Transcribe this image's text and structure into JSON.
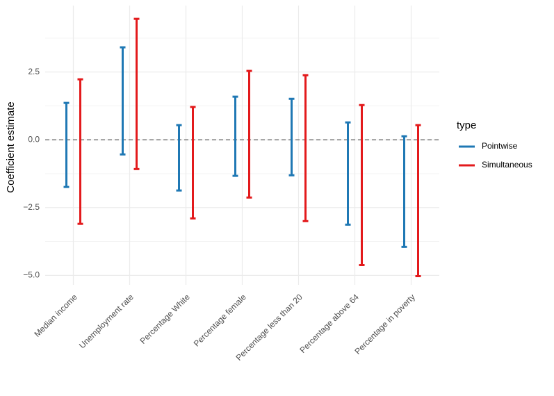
{
  "chart_data": {
    "type": "errorbar",
    "y_label": "Coefficient estimate",
    "categories": [
      "Median income",
      "Unemployment rate",
      "Percentage White",
      "Percentage female",
      "Percentage less than 20",
      "Percentage above 64",
      "Percentage in poverty"
    ],
    "series": [
      {
        "name": "Pointwise",
        "color": "#1f78b4",
        "lower": [
          -1.74,
          -0.54,
          -1.87,
          -1.33,
          -1.31,
          -3.13,
          -3.95
        ],
        "upper": [
          1.36,
          3.41,
          0.54,
          1.59,
          1.51,
          0.64,
          0.13
        ]
      },
      {
        "name": "Simultaneous",
        "color": "#e31a1c",
        "lower": [
          -3.1,
          -1.08,
          -2.9,
          -2.13,
          -3.0,
          -4.62,
          -5.03
        ],
        "upper": [
          2.23,
          4.46,
          1.21,
          2.54,
          2.38,
          1.28,
          0.54
        ]
      }
    ],
    "legend_title": "type",
    "legend": "right",
    "ylim": [
      -5.35,
      4.95
    ],
    "yticks": [
      {
        "value": -5,
        "label": "−5.0"
      },
      {
        "value": -2.5,
        "label": "−2.5"
      },
      {
        "value": 0,
        "label": "0.0"
      },
      2.5
    ],
    "minor_yticks": [
      -3.75,
      -1.25,
      1.25,
      3.75
    ],
    "hline": 0,
    "grid": true
  }
}
